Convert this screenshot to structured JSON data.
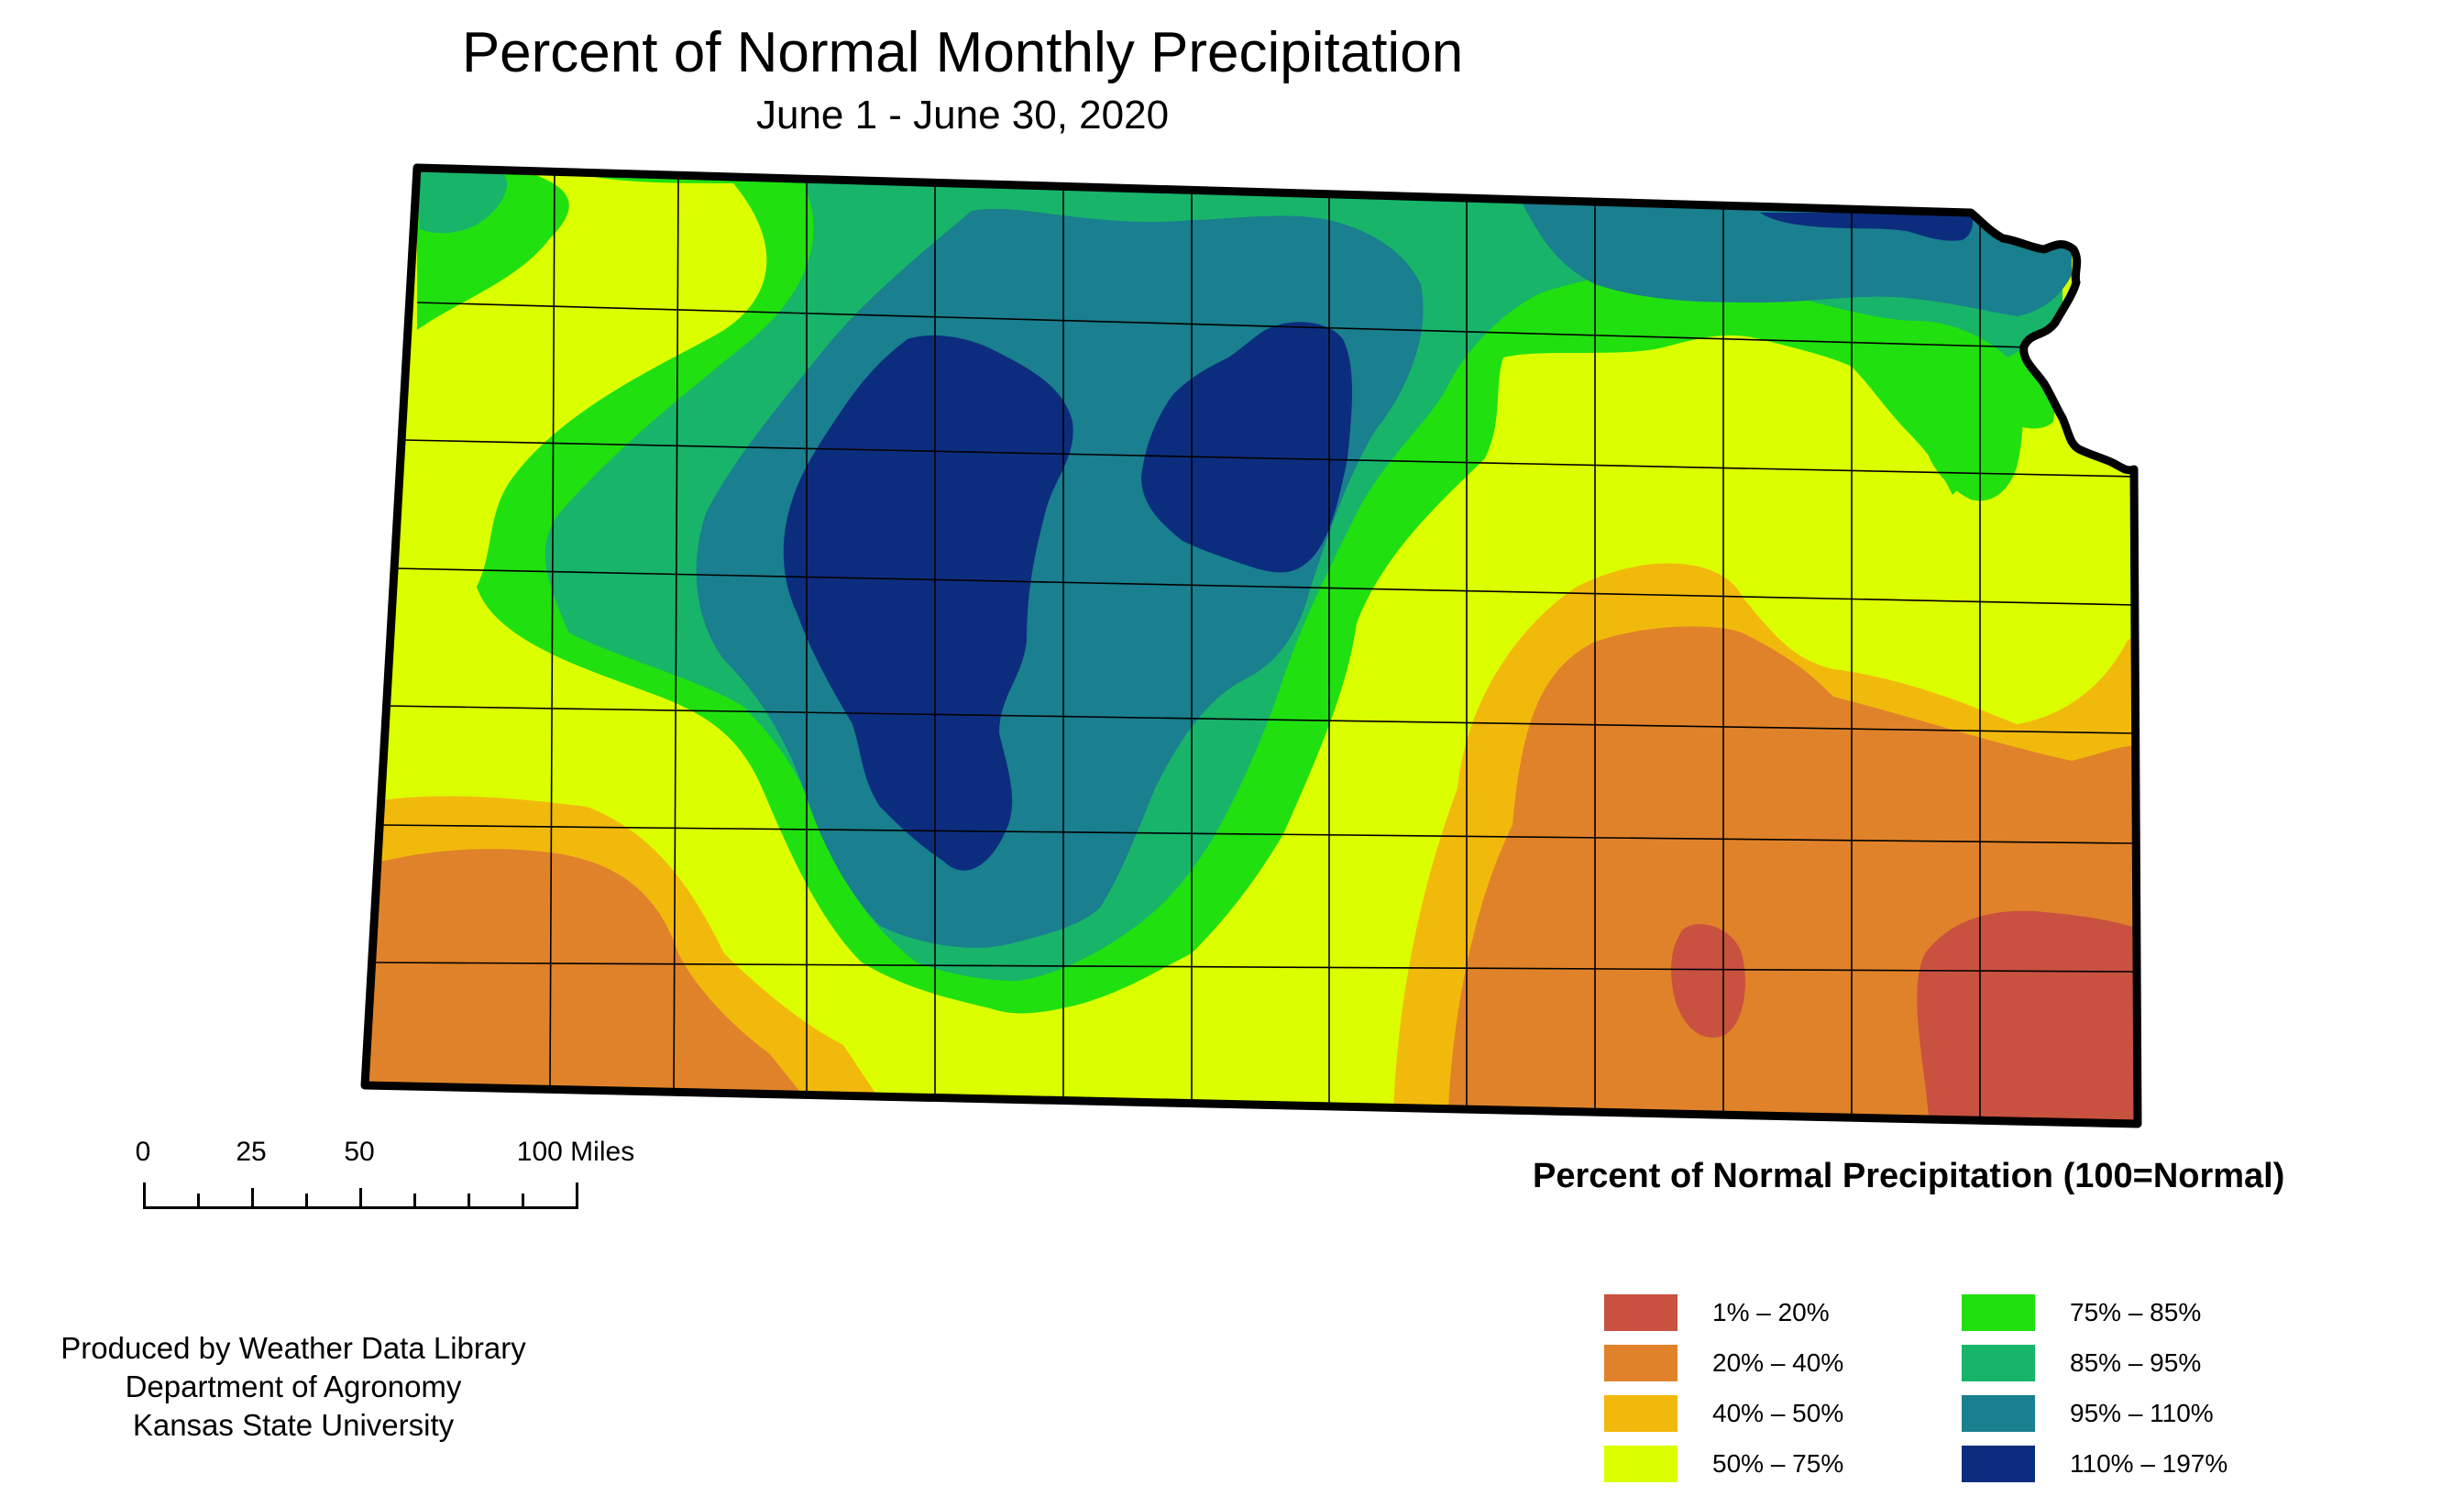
{
  "title": "Percent of Normal Monthly Precipitation",
  "subtitle": "June 1 - June 30, 2020",
  "map": {
    "region": "Kansas",
    "colors": {
      "r1_20": "#c8513f",
      "r20_40": "#e0822a",
      "r40_50": "#f2b90d",
      "r50_75": "#dcff00",
      "r75_85": "#20e010",
      "r85_95": "#18b46a",
      "r95_110": "#1a7f8e",
      "r110_197": "#0c2d7e",
      "county_lines": "#000000",
      "border": "#000000"
    }
  },
  "scale_bar": {
    "labels": [
      "0",
      "25",
      "50",
      "100 Miles"
    ]
  },
  "legend": {
    "title": "Percent of Normal Precipitation (100=Normal)",
    "items": [
      {
        "label": "1% – 20%",
        "color": "#c8513f"
      },
      {
        "label": "20% – 40%",
        "color": "#e0822a"
      },
      {
        "label": "40% – 50%",
        "color": "#f2b90d"
      },
      {
        "label": "50% – 75%",
        "color": "#dcff00"
      },
      {
        "label": "75% – 85%",
        "color": "#20e010"
      },
      {
        "label": "85% – 95%",
        "color": "#18b46a"
      },
      {
        "label": "95% – 110%",
        "color": "#1a7f8e"
      },
      {
        "label": "110% – 197%",
        "color": "#0c2d7e"
      }
    ]
  },
  "credit": {
    "line1": "Produced by Weather Data Library",
    "line2": "Department of Agronomy",
    "line3": "Kansas State University"
  }
}
